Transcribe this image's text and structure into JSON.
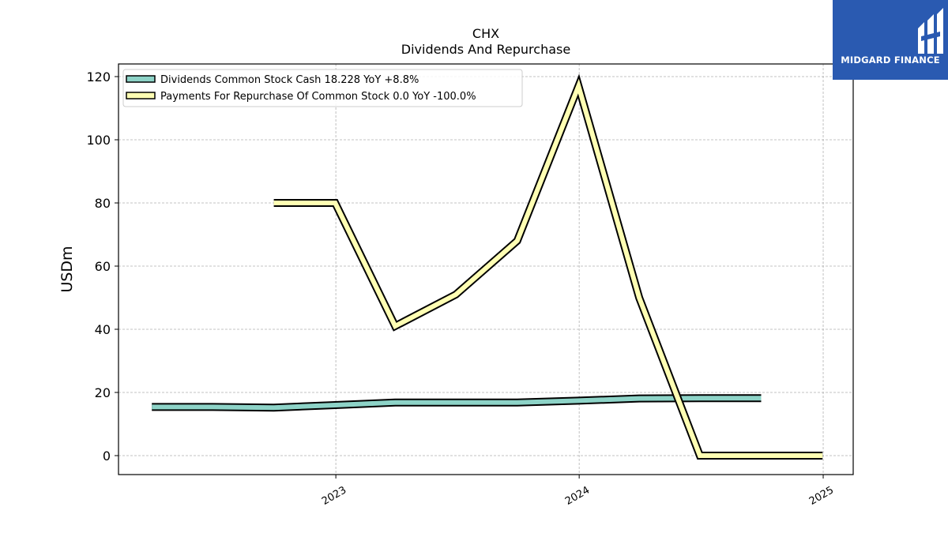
{
  "logo": {
    "text": "MIDGARD FINANCE",
    "background": "#2a5ab1",
    "mark_icon": "midgard-finance-logo-icon"
  },
  "chart_data": {
    "type": "line",
    "title": "CHX",
    "subtitle": "Dividends And Repurchase",
    "xlabel": "",
    "ylabel": "USDm",
    "ylim": [
      -6,
      124
    ],
    "xlim": [
      "2022-02-09",
      "2025-02-15"
    ],
    "yticks": [
      0,
      20,
      40,
      60,
      80,
      100,
      120
    ],
    "xticks": [
      "2023",
      "2024",
      "2025"
    ],
    "grid": true,
    "legend_position": "top-left",
    "series": [
      {
        "name": "Dividends Common Stock Cash  18.228 YoY +8.8%",
        "color": "#8dd3c7",
        "x": [
          "2022-03-31",
          "2022-06-30",
          "2022-09-30",
          "2022-12-31",
          "2023-03-31",
          "2023-06-30",
          "2023-09-30",
          "2023-12-31",
          "2024-03-31",
          "2024-06-30",
          "2024-09-30"
        ],
        "values": [
          15.4,
          15.4,
          15.2,
          16.0,
          16.8,
          16.8,
          16.8,
          17.4,
          18.1,
          18.2,
          18.2
        ]
      },
      {
        "name": "Payments For Repurchase Of Common Stock  0.0 YoY -100.0%",
        "color": "#ffffb3",
        "x": [
          "2022-09-30",
          "2022-12-31",
          "2023-03-31",
          "2023-06-30",
          "2023-09-30",
          "2023-12-31",
          "2024-03-31",
          "2024-06-30",
          "2024-09-30",
          "2024-12-31"
        ],
        "values": [
          80,
          80,
          41,
          51,
          68,
          117,
          50,
          0,
          0,
          0
        ]
      }
    ]
  }
}
